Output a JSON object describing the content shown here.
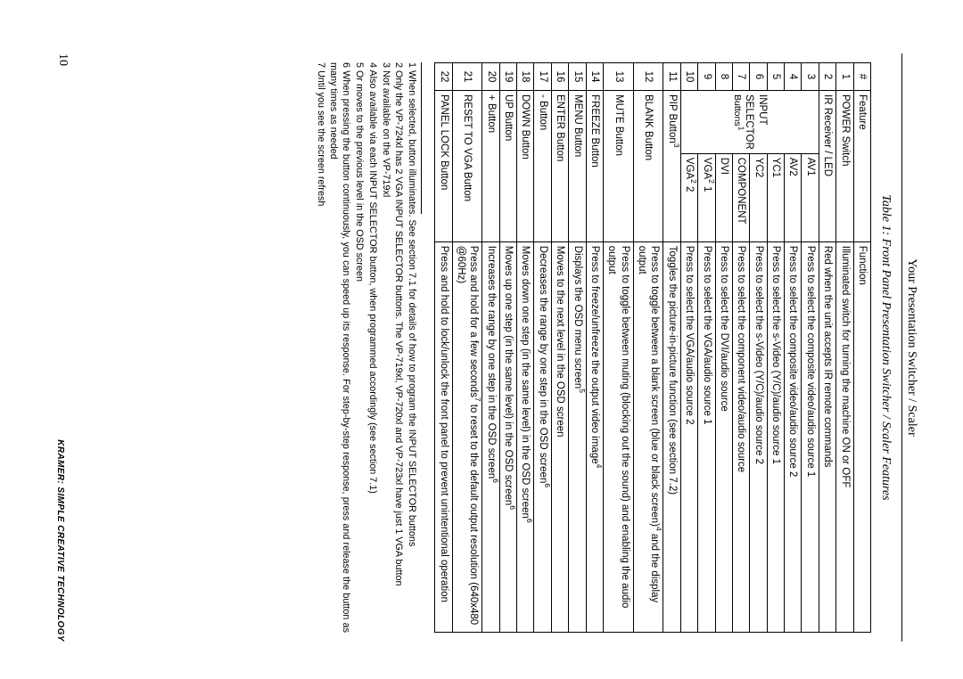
{
  "running_head": "Your Presentation Switcher / Scaler",
  "table_caption": "Table 1: Front Panel Presentation Switcher / Scaler Features",
  "headers": {
    "num": "#",
    "feature": "Feature",
    "function": "Function"
  },
  "group": {
    "line1": "INPUT SELECTOR",
    "line2_prefix": "Buttons",
    "line2_sup": "1"
  },
  "page_number": "10",
  "footer_tag": "KRAMER: SIMPLE CREATIVE TECHNOLOGY",
  "simple_before": [
    {
      "num": "1",
      "feature": "POWER Switch",
      "func": "Illuminated switch for turning the machine ON or OFF"
    },
    {
      "num": "2",
      "feature": "IR Receiver / LED",
      "func": "Red when the unit accepts IR remote commands"
    }
  ],
  "grouped": [
    {
      "num": "3",
      "sub": "AV1",
      "func": "Press to select the composite video/audio source 1"
    },
    {
      "num": "4",
      "sub": "AV2",
      "func": "Press to select the composite video/audio source 2"
    },
    {
      "num": "5",
      "sub": "YC1",
      "func": "Press to select the s-Video (Y/C)/audio source 1"
    },
    {
      "num": "6",
      "sub": "YC2",
      "func": "Press to select the s-Video (Y/C)/audio source 2"
    },
    {
      "num": "7",
      "sub": "COMPONENT",
      "func": "Press to select the component video/audio source"
    },
    {
      "num": "8",
      "sub": "DVI",
      "func": "Press to select the DVI/audio source"
    },
    {
      "num": "9",
      "sub_html": "VGA<sup>2</sup> 1",
      "func": "Press to select the VGA/audio source 1"
    },
    {
      "num": "10",
      "sub_html": "VGA<sup>2</sup> 2",
      "func": "Press to select the VGA/audio source 2"
    }
  ],
  "simple_after": [
    {
      "num": "11",
      "feature_html": "PIP Button<sup>3</sup>",
      "func": "Toggles the picture-in-picture function (see section 7.2)"
    },
    {
      "num": "12",
      "feature": "BLANK Button",
      "func_html": "Press to toggle between a blank screen (blue or black screen)<sup>4</sup> and the display output"
    },
    {
      "num": "13",
      "feature": "MUTE Button",
      "func": "Press to toggle between muting (blocking out the sound) and enabling the audio output"
    },
    {
      "num": "14",
      "feature": "FREEZE Button",
      "func_html": "Press to freeze/unfreeze the output video image<sup>4</sup>"
    },
    {
      "num": "15",
      "feature": "MENU Button",
      "func_html": "Displays the OSD menu screen<sup>5</sup>"
    },
    {
      "num": "16",
      "feature": "ENTER Button",
      "func": "Moves to the next level in the OSD screen"
    },
    {
      "num": "17",
      "feature": "- Button",
      "func_html": "Decreases the range by one step in the OSD screen<sup>6</sup>"
    },
    {
      "num": "18",
      "feature": "DOWN Button",
      "func_html": "Moves down one step (in the same level) in the OSD screen<sup>6</sup>"
    },
    {
      "num": "19",
      "feature": "UP Button",
      "func_html": "Moves up one step (in the same level) in the OSD screen<sup>6</sup>"
    },
    {
      "num": "20",
      "feature": "+ Button",
      "func_html": "Increases the range by one step in the OSD screen<sup>6</sup>"
    },
    {
      "num": "21",
      "feature": "RESET TO VGA Button",
      "func_html": "Press and hold for a few seconds<sup>7</sup> to reset to the default output resolution (640x480 @60Hz)"
    },
    {
      "num": "22",
      "feature": "PANEL LOCK Button",
      "func": "Press and hold to lock/unlock the front panel to prevent unintentional operation"
    }
  ],
  "footnotes": [
    "1 When selected, button illuminates. See section 7.1 for details of how to program the INPUT SELECTOR buttons",
    "2 Only the VP-724xl has 2 VGA INPUT SELECTOR buttons. The VP-719xl, VP-720xl and VP-723xl have just 1 VGA button",
    "3 Not available on the VP-719xl",
    "4 Also available via each INPUT SELECTOR button, when programmed accordingly (see section 7.1)",
    "5 Or moves to the previous level in the OSD screen",
    "6 When pressing the button continuously, you can speed up its response. For step-by-step response, press and release the button as many times as needed",
    "7 Until you see the screen refresh"
  ]
}
